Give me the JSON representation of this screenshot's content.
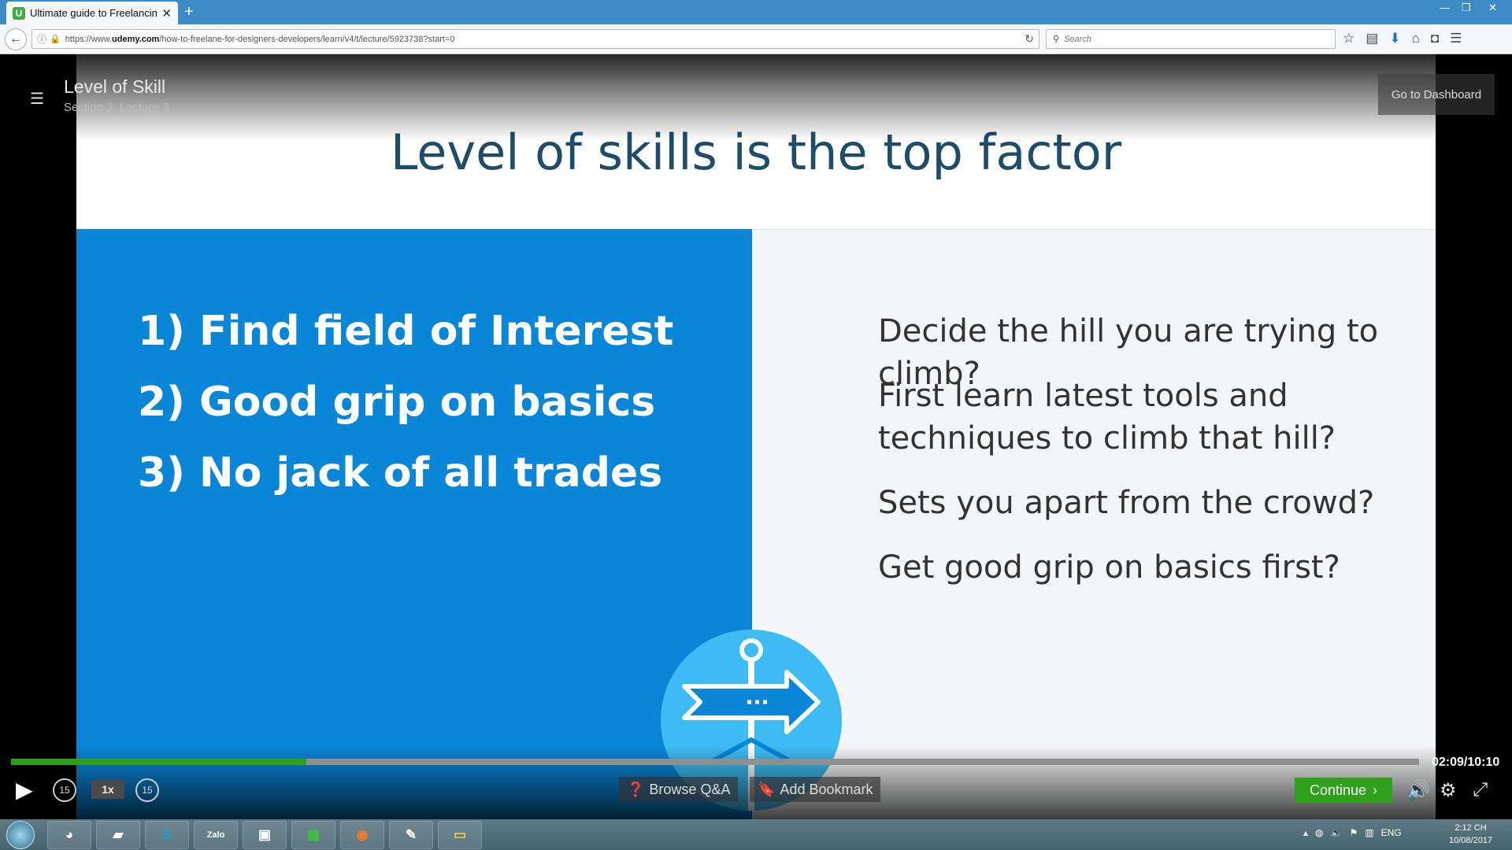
{
  "browser": {
    "tab_title": "Ultimate guide to Freelancin",
    "tab_favicon": "U",
    "new_tab": "+",
    "url_prefix": "https://www.",
    "url_host": "udemy.com",
    "url_path": "/how-to-freelane-for-designers-developers/learn/v4/t/lecture/5923738?start=0",
    "search_placeholder": "Search"
  },
  "player": {
    "lecture_title": "Level of Skill",
    "lecture_subtitle": "Section 2, Lecture 3",
    "dashboard_button": "Go to Dashboard",
    "time_display": "02:09/10:10",
    "progress_fraction": 0.21,
    "speed": "1x",
    "skip_back": "15",
    "skip_forward": "15",
    "browse_qa": "Browse Q&A",
    "add_bookmark": "Add Bookmark",
    "continue": "Continue"
  },
  "slide": {
    "title": "Level of skills is the top factor",
    "left_items": [
      "1) Find field of Interest",
      "2) Good grip on basics",
      "3) No jack of all trades"
    ],
    "right_items": [
      "Decide the hill you are trying to climb?",
      "First learn latest tools and techniques to climb that hill?",
      "Sets you apart from the crowd?",
      "Get good grip on basics first?"
    ]
  },
  "taskbar": {
    "apps": [
      "chrome",
      "folder-sticky",
      "S",
      "Zalo",
      "outlook",
      "excel",
      "firefox",
      "paint",
      "explorer"
    ],
    "language": "ENG",
    "time": "2:12 CH",
    "date": "10/08/2017"
  },
  "colors": {
    "accent_green": "#2ea01c",
    "slide_blue": "#0a86d8",
    "emblem_blue": "#3dbcf4"
  }
}
